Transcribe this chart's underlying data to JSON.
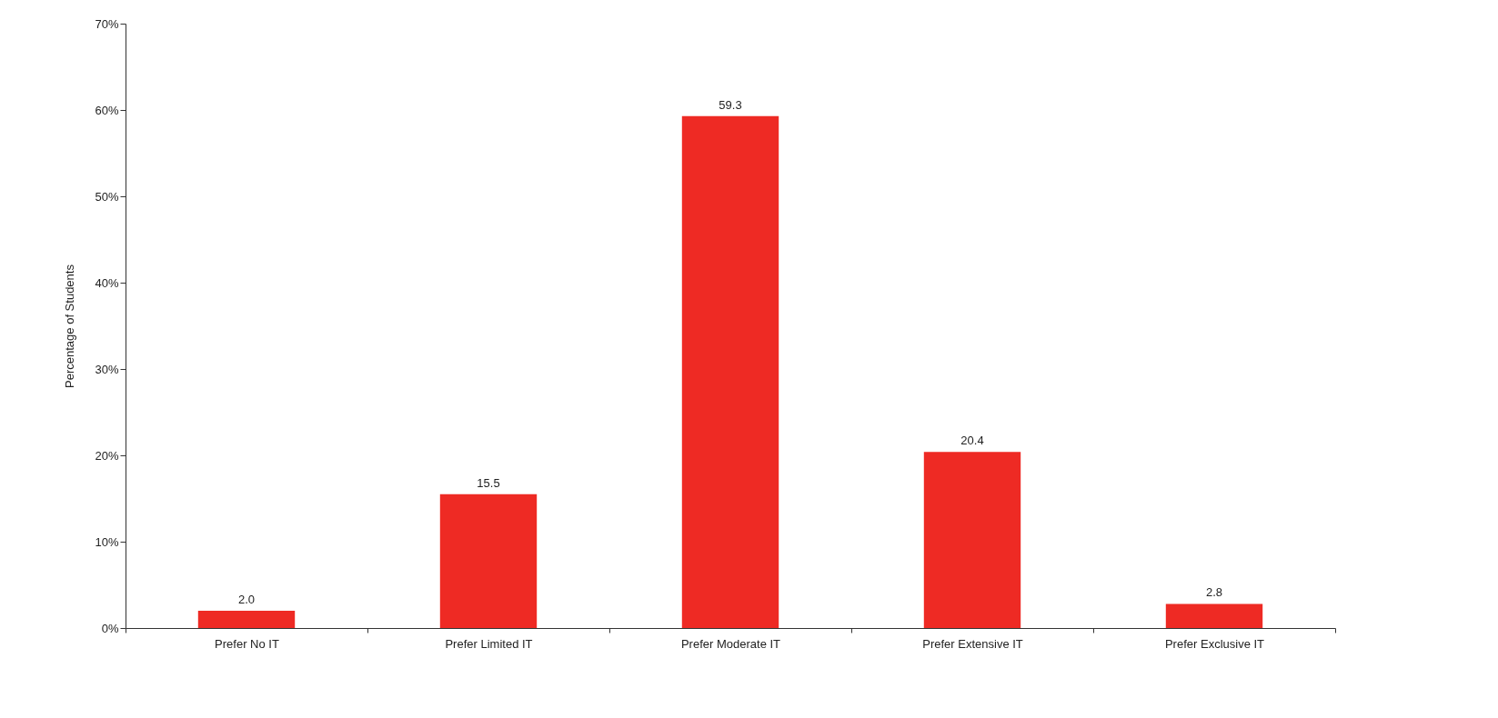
{
  "chart_data": {
    "type": "bar",
    "ylabel": "Percentage of Students",
    "categories": [
      "Prefer No IT",
      "Prefer Limited IT",
      "Prefer Moderate IT",
      "Prefer Extensive IT",
      "Prefer Exclusive IT"
    ],
    "values": [
      2.0,
      15.5,
      59.3,
      20.4,
      2.8
    ],
    "value_labels": [
      "2.0",
      "15.5",
      "59.3",
      "20.4",
      "2.8"
    ],
    "color": "#ee2a24",
    "ylim": [
      0,
      70
    ],
    "yticks": [
      {
        "value": 0,
        "label": "0%"
      },
      {
        "value": 10,
        "label": "10%"
      },
      {
        "value": 20,
        "label": "20%"
      },
      {
        "value": 30,
        "label": "30%"
      },
      {
        "value": 40,
        "label": "40%"
      },
      {
        "value": 50,
        "label": "50%"
      },
      {
        "value": 60,
        "label": "60%"
      },
      {
        "value": 70,
        "label": "70%"
      }
    ],
    "grid": false
  }
}
